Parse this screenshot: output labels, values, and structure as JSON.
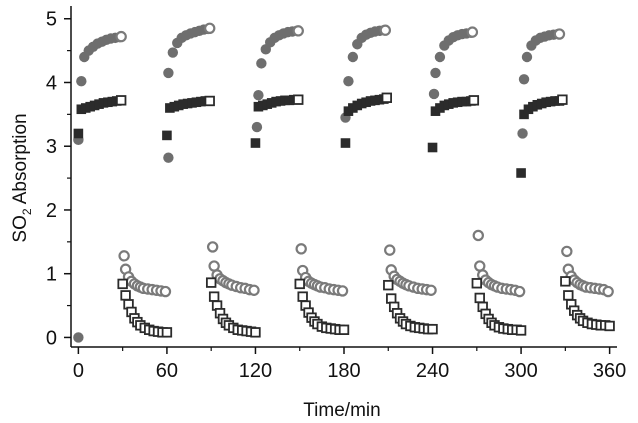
{
  "chart_data": {
    "type": "scatter",
    "title": "",
    "xlabel": "Time/min",
    "ylabel": {
      "prefix": "SO",
      "subscript": "2",
      "suffix": " Absorption"
    },
    "xlim": [
      -5,
      365
    ],
    "ylim": [
      -0.15,
      5.2
    ],
    "xticks": [
      "0",
      "60",
      "120",
      "180",
      "240",
      "300",
      "360"
    ],
    "yticks": [
      "0",
      "1",
      "2",
      "3",
      "4",
      "5"
    ],
    "grid": false,
    "legend": "none",
    "colors": {
      "filled": "#6e6e6e",
      "dark": "#2b2b2b",
      "hollow_circle": "#7a7a7a",
      "hollow_square": "#2b2b2b"
    },
    "series": [
      {
        "marker": "filled-circle",
        "points": [
          [
            0,
            0.0
          ],
          [
            0,
            3.1
          ],
          [
            2,
            4.02
          ],
          [
            4,
            4.4
          ],
          [
            7,
            4.5
          ],
          [
            10,
            4.56
          ],
          [
            13,
            4.61
          ],
          [
            16,
            4.64
          ],
          [
            19,
            4.67
          ],
          [
            22,
            4.69
          ],
          [
            25,
            4.7
          ],
          [
            28,
            4.71
          ],
          [
            61,
            2.82
          ],
          [
            61,
            4.15
          ],
          [
            64,
            4.47
          ],
          [
            67,
            4.62
          ],
          [
            70,
            4.7
          ],
          [
            73,
            4.74
          ],
          [
            76,
            4.77
          ],
          [
            79,
            4.79
          ],
          [
            82,
            4.81
          ],
          [
            85,
            4.83
          ],
          [
            88,
            4.84
          ],
          [
            121,
            3.3
          ],
          [
            122,
            3.8
          ],
          [
            124,
            4.3
          ],
          [
            127,
            4.52
          ],
          [
            130,
            4.63
          ],
          [
            133,
            4.7
          ],
          [
            136,
            4.74
          ],
          [
            139,
            4.77
          ],
          [
            142,
            4.79
          ],
          [
            145,
            4.8
          ],
          [
            148,
            4.81
          ],
          [
            181,
            3.45
          ],
          [
            183,
            4.02
          ],
          [
            186,
            4.4
          ],
          [
            189,
            4.6
          ],
          [
            192,
            4.7
          ],
          [
            195,
            4.75
          ],
          [
            198,
            4.78
          ],
          [
            201,
            4.8
          ],
          [
            204,
            4.81
          ],
          [
            207,
            4.82
          ],
          [
            241,
            3.82
          ],
          [
            242,
            4.15
          ],
          [
            245,
            4.4
          ],
          [
            248,
            4.58
          ],
          [
            251,
            4.66
          ],
          [
            254,
            4.71
          ],
          [
            257,
            4.74
          ],
          [
            260,
            4.76
          ],
          [
            263,
            4.77
          ],
          [
            266,
            4.78
          ],
          [
            301,
            3.2
          ],
          [
            302,
            4.05
          ],
          [
            304,
            4.4
          ],
          [
            307,
            4.58
          ],
          [
            310,
            4.66
          ],
          [
            313,
            4.7
          ],
          [
            316,
            4.72
          ],
          [
            319,
            4.74
          ],
          [
            322,
            4.75
          ],
          [
            325,
            4.76
          ]
        ]
      },
      {
        "marker": "hollow-circle-end",
        "points": [
          [
            29,
            4.72
          ],
          [
            89,
            4.85
          ],
          [
            149,
            4.81
          ],
          [
            208,
            4.82
          ],
          [
            267,
            4.79
          ],
          [
            326,
            4.76
          ]
        ]
      },
      {
        "marker": "filled-square",
        "points": [
          [
            0,
            3.2
          ],
          [
            2,
            3.58
          ],
          [
            5,
            3.6
          ],
          [
            8,
            3.62
          ],
          [
            11,
            3.64
          ],
          [
            14,
            3.66
          ],
          [
            17,
            3.68
          ],
          [
            20,
            3.69
          ],
          [
            23,
            3.7
          ],
          [
            26,
            3.71
          ],
          [
            60,
            3.17
          ],
          [
            62,
            3.6
          ],
          [
            65,
            3.62
          ],
          [
            68,
            3.64
          ],
          [
            71,
            3.66
          ],
          [
            74,
            3.67
          ],
          [
            77,
            3.68
          ],
          [
            80,
            3.69
          ],
          [
            83,
            3.7
          ],
          [
            86,
            3.71
          ],
          [
            120,
            3.05
          ],
          [
            122,
            3.62
          ],
          [
            125,
            3.64
          ],
          [
            128,
            3.66
          ],
          [
            131,
            3.68
          ],
          [
            134,
            3.7
          ],
          [
            137,
            3.71
          ],
          [
            140,
            3.72
          ],
          [
            143,
            3.72
          ],
          [
            146,
            3.73
          ],
          [
            181,
            3.05
          ],
          [
            183,
            3.55
          ],
          [
            186,
            3.6
          ],
          [
            189,
            3.64
          ],
          [
            192,
            3.67
          ],
          [
            195,
            3.69
          ],
          [
            198,
            3.71
          ],
          [
            201,
            3.72
          ],
          [
            204,
            3.73
          ],
          [
            207,
            3.74
          ],
          [
            240,
            2.98
          ],
          [
            242,
            3.55
          ],
          [
            245,
            3.6
          ],
          [
            248,
            3.64
          ],
          [
            251,
            3.66
          ],
          [
            254,
            3.68
          ],
          [
            257,
            3.69
          ],
          [
            260,
            3.7
          ],
          [
            263,
            3.7
          ],
          [
            266,
            3.71
          ],
          [
            300,
            2.58
          ],
          [
            302,
            3.5
          ],
          [
            305,
            3.58
          ],
          [
            308,
            3.62
          ],
          [
            311,
            3.65
          ],
          [
            314,
            3.67
          ],
          [
            317,
            3.69
          ],
          [
            320,
            3.7
          ],
          [
            323,
            3.71
          ],
          [
            326,
            3.71
          ]
        ]
      },
      {
        "marker": "hollow-square-end",
        "points": [
          [
            29,
            3.72
          ],
          [
            89,
            3.71
          ],
          [
            149,
            3.73
          ],
          [
            209,
            3.76
          ],
          [
            268,
            3.72
          ],
          [
            328,
            3.73
          ]
        ]
      },
      {
        "marker": "hollow-circle",
        "points": [
          [
            31,
            1.28
          ],
          [
            32,
            1.07
          ],
          [
            34,
            0.95
          ],
          [
            36,
            0.88
          ],
          [
            38,
            0.84
          ],
          [
            40,
            0.81
          ],
          [
            42,
            0.79
          ],
          [
            44,
            0.77
          ],
          [
            47,
            0.76
          ],
          [
            50,
            0.75
          ],
          [
            53,
            0.74
          ],
          [
            56,
            0.73
          ],
          [
            59,
            0.72
          ],
          [
            91,
            1.42
          ],
          [
            92,
            1.12
          ],
          [
            94,
            0.98
          ],
          [
            96,
            0.92
          ],
          [
            98,
            0.89
          ],
          [
            100,
            0.86
          ],
          [
            102,
            0.84
          ],
          [
            104,
            0.82
          ],
          [
            107,
            0.8
          ],
          [
            110,
            0.78
          ],
          [
            113,
            0.77
          ],
          [
            116,
            0.75
          ],
          [
            119,
            0.74
          ],
          [
            151,
            1.39
          ],
          [
            152,
            1.05
          ],
          [
            154,
            0.94
          ],
          [
            156,
            0.88
          ],
          [
            158,
            0.85
          ],
          [
            160,
            0.83
          ],
          [
            162,
            0.81
          ],
          [
            164,
            0.79
          ],
          [
            167,
            0.78
          ],
          [
            170,
            0.76
          ],
          [
            173,
            0.75
          ],
          [
            176,
            0.74
          ],
          [
            179,
            0.73
          ],
          [
            211,
            1.37
          ],
          [
            212,
            1.06
          ],
          [
            214,
            0.96
          ],
          [
            216,
            0.91
          ],
          [
            218,
            0.88
          ],
          [
            220,
            0.85
          ],
          [
            222,
            0.83
          ],
          [
            224,
            0.81
          ],
          [
            227,
            0.79
          ],
          [
            230,
            0.77
          ],
          [
            233,
            0.76
          ],
          [
            236,
            0.75
          ],
          [
            239,
            0.74
          ],
          [
            271,
            1.6
          ],
          [
            272,
            1.12
          ],
          [
            274,
            0.98
          ],
          [
            276,
            0.9
          ],
          [
            278,
            0.86
          ],
          [
            280,
            0.83
          ],
          [
            282,
            0.81
          ],
          [
            284,
            0.79
          ],
          [
            287,
            0.77
          ],
          [
            290,
            0.76
          ],
          [
            293,
            0.75
          ],
          [
            296,
            0.74
          ],
          [
            299,
            0.72
          ],
          [
            331,
            1.35
          ],
          [
            332,
            1.07
          ],
          [
            334,
            0.96
          ],
          [
            336,
            0.9
          ],
          [
            338,
            0.86
          ],
          [
            340,
            0.83
          ],
          [
            342,
            0.81
          ],
          [
            344,
            0.79
          ],
          [
            347,
            0.78
          ],
          [
            350,
            0.77
          ],
          [
            353,
            0.76
          ],
          [
            356,
            0.75
          ],
          [
            359,
            0.72
          ]
        ]
      },
      {
        "marker": "hollow-square",
        "points": [
          [
            30,
            0.84
          ],
          [
            32,
            0.66
          ],
          [
            34,
            0.52
          ],
          [
            36,
            0.4
          ],
          [
            38,
            0.3
          ],
          [
            40,
            0.24
          ],
          [
            42,
            0.19
          ],
          [
            45,
            0.15
          ],
          [
            48,
            0.12
          ],
          [
            51,
            0.1
          ],
          [
            54,
            0.09
          ],
          [
            57,
            0.08
          ],
          [
            60,
            0.08
          ],
          [
            90,
            0.86
          ],
          [
            92,
            0.64
          ],
          [
            94,
            0.5
          ],
          [
            96,
            0.38
          ],
          [
            98,
            0.29
          ],
          [
            100,
            0.23
          ],
          [
            102,
            0.19
          ],
          [
            105,
            0.15
          ],
          [
            108,
            0.12
          ],
          [
            111,
            0.11
          ],
          [
            114,
            0.1
          ],
          [
            117,
            0.09
          ],
          [
            120,
            0.08
          ],
          [
            150,
            0.84
          ],
          [
            152,
            0.64
          ],
          [
            154,
            0.5
          ],
          [
            156,
            0.39
          ],
          [
            158,
            0.31
          ],
          [
            160,
            0.25
          ],
          [
            162,
            0.21
          ],
          [
            165,
            0.17
          ],
          [
            168,
            0.15
          ],
          [
            171,
            0.14
          ],
          [
            174,
            0.13
          ],
          [
            177,
            0.12
          ],
          [
            180,
            0.12
          ],
          [
            210,
            0.82
          ],
          [
            212,
            0.61
          ],
          [
            214,
            0.48
          ],
          [
            216,
            0.38
          ],
          [
            218,
            0.3
          ],
          [
            220,
            0.25
          ],
          [
            222,
            0.21
          ],
          [
            225,
            0.18
          ],
          [
            228,
            0.16
          ],
          [
            231,
            0.15
          ],
          [
            234,
            0.14
          ],
          [
            237,
            0.13
          ],
          [
            240,
            0.13
          ],
          [
            270,
            0.85
          ],
          [
            272,
            0.62
          ],
          [
            274,
            0.48
          ],
          [
            276,
            0.37
          ],
          [
            278,
            0.29
          ],
          [
            280,
            0.23
          ],
          [
            282,
            0.19
          ],
          [
            285,
            0.16
          ],
          [
            288,
            0.14
          ],
          [
            291,
            0.13
          ],
          [
            294,
            0.12
          ],
          [
            297,
            0.12
          ],
          [
            300,
            0.11
          ],
          [
            330,
            0.88
          ],
          [
            332,
            0.66
          ],
          [
            334,
            0.52
          ],
          [
            336,
            0.42
          ],
          [
            338,
            0.35
          ],
          [
            340,
            0.3
          ],
          [
            342,
            0.26
          ],
          [
            345,
            0.23
          ],
          [
            348,
            0.21
          ],
          [
            351,
            0.2
          ],
          [
            354,
            0.19
          ],
          [
            357,
            0.19
          ],
          [
            360,
            0.18
          ]
        ]
      }
    ]
  }
}
